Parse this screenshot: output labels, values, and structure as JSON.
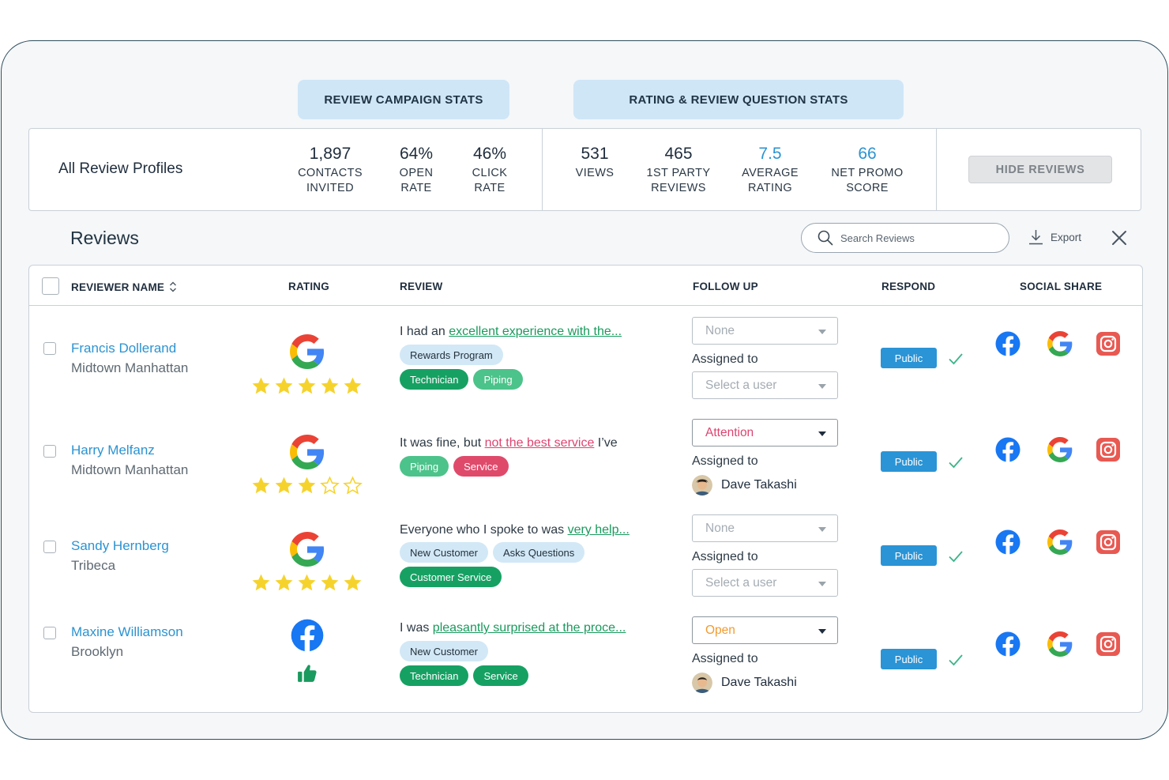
{
  "tabs": {
    "campaign": "REVIEW CAMPAIGN STATS",
    "rating": "RATING & REVIEW QUESTION STATS"
  },
  "stats": {
    "profile": "All Review Profiles",
    "items": [
      {
        "value": "1,897",
        "label1": "CONTACTS",
        "label2": "INVITED"
      },
      {
        "value": "64%",
        "label1": "OPEN",
        "label2": "RATE"
      },
      {
        "value": "46%",
        "label1": "CLICK",
        "label2": "RATE"
      },
      {
        "value": "531",
        "label1": "VIEWS",
        "label2": ""
      },
      {
        "value": "465",
        "label1": "1ST PARTY",
        "label2": "REVIEWS"
      },
      {
        "value": "7.5",
        "label1": "AVERAGE",
        "label2": "RATING"
      },
      {
        "value": "66",
        "label1": "NET PROMO",
        "label2": "SCORE"
      }
    ],
    "hide_button": "HIDE REVIEWS"
  },
  "reviews": {
    "title": "Reviews",
    "search_placeholder": "Search Reviews",
    "export_label": "Export"
  },
  "columns": {
    "name": "REVIEWER NAME",
    "rating": "RATING",
    "review": "REVIEW",
    "follow_up": "FOLLOW UP",
    "respond": "RESPOND",
    "social": "SOCIAL SHARE"
  },
  "rows": [
    {
      "name": "Francis Dollerand",
      "location": "Midtown Manhattan",
      "source": "google",
      "stars": 5,
      "review_prefix": "I had an ",
      "review_link": "excellent experience with the...",
      "review_suffix": "",
      "tags_line1": [
        {
          "text": "Rewards Program",
          "style": "light"
        }
      ],
      "tags_line2": [
        {
          "text": "Technician",
          "style": "green"
        },
        {
          "text": "Piping",
          "style": "mint"
        }
      ],
      "follow_up": "None",
      "assigned_label": "Assigned to",
      "assignee": "Select a user",
      "respond": "Public"
    },
    {
      "name": "Harry Melfanz",
      "location": "Midtown Manhattan",
      "source": "google",
      "stars": 3,
      "review_prefix": "It was fine, but ",
      "review_link": "not the best service",
      "review_suffix": " I’ve",
      "tags_line1": [
        {
          "text": "Piping",
          "style": "mint"
        },
        {
          "text": "Service",
          "style": "red"
        }
      ],
      "tags_line2": [],
      "follow_up": "Attention",
      "assigned_label": "Assigned to",
      "assignee": "Dave Takashi",
      "respond": "Public"
    },
    {
      "name": "Sandy Hernberg",
      "location": "Tribeca",
      "source": "google",
      "stars": 5,
      "review_prefix": "Everyone who I spoke to was ",
      "review_link": "very help...",
      "review_suffix": "",
      "tags_line1": [
        {
          "text": "New Customer",
          "style": "light"
        },
        {
          "text": "Asks Questions",
          "style": "light"
        }
      ],
      "tags_line2": [
        {
          "text": "Customer Service",
          "style": "green"
        }
      ],
      "follow_up": "None",
      "assigned_label": "Assigned to",
      "assignee": "Select a user",
      "respond": "Public"
    },
    {
      "name": "Maxine Williamson",
      "location": "Brooklyn",
      "source": "facebook",
      "stars": 0,
      "review_prefix": "I was ",
      "review_link": "pleasantly surprised at the proce...",
      "review_suffix": "",
      "tags_line1": [
        {
          "text": "New Customer",
          "style": "light"
        }
      ],
      "tags_line2": [
        {
          "text": "Technician",
          "style": "green"
        },
        {
          "text": "Service",
          "style": "green"
        }
      ],
      "follow_up": "Open",
      "assigned_label": "Assigned to",
      "assignee": "Dave Takashi",
      "respond": "Public"
    }
  ],
  "colors": {
    "accent_blue": "#2b93d1",
    "tag_green": "#16a163",
    "tag_red": "#df4a6b",
    "star_yellow": "#f6d32c"
  }
}
